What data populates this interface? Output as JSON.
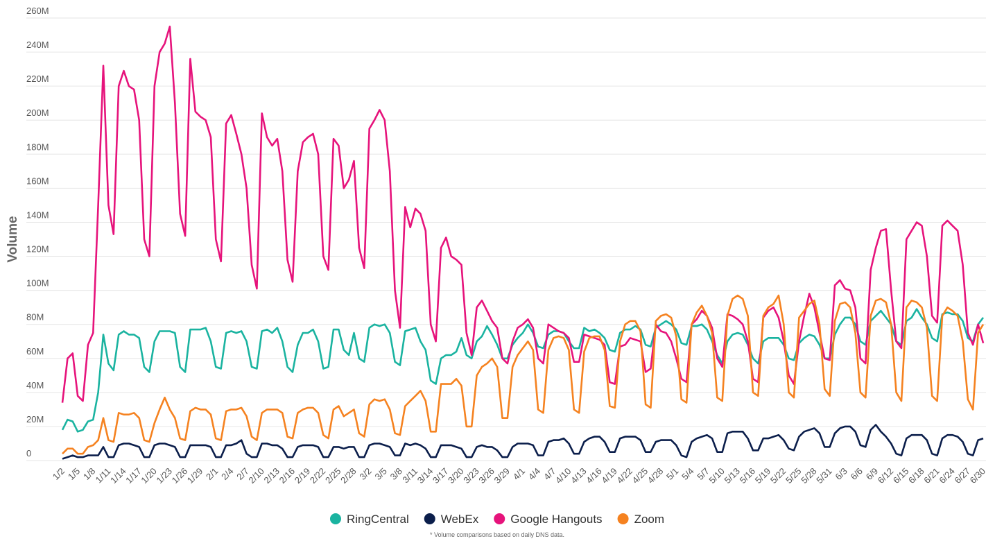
{
  "chart_data": {
    "type": "line",
    "y_label": "Volume",
    "footnote": "* Volume comparisons based on daily DNS data.",
    "ylim": [
      0,
      260
    ],
    "yticks": [
      0,
      {
        "value": 20,
        "label": "20M"
      },
      {
        "value": 40,
        "label": "40M"
      },
      {
        "value": 60,
        "label": "60M"
      },
      {
        "value": 80,
        "label": "80M"
      },
      {
        "value": 100,
        "label": "100M"
      },
      {
        "value": 120,
        "label": "120M"
      },
      {
        "value": 140,
        "label": "140M"
      },
      {
        "value": 160,
        "label": "160M"
      },
      {
        "value": 180,
        "label": "180M"
      },
      {
        "value": 200,
        "label": "200M"
      },
      {
        "value": 220,
        "label": "220M"
      },
      {
        "value": 240,
        "label": "240M"
      },
      {
        "value": 260,
        "label": "260M"
      }
    ],
    "grid": true,
    "legend": "bottom",
    "categories": [
      "1/2",
      null,
      null,
      "1/5",
      null,
      null,
      "1/8",
      null,
      null,
      "1/11",
      null,
      null,
      "1/14",
      null,
      null,
      "1/17",
      null,
      null,
      "1/20",
      null,
      null,
      "1/23",
      null,
      null,
      "1/26",
      null,
      null,
      "1/29",
      null,
      null,
      "2/1",
      null,
      null,
      "2/4",
      null,
      null,
      "2/7",
      null,
      null,
      "2/10",
      null,
      null,
      "2/13",
      null,
      null,
      "2/16",
      null,
      null,
      "2/19",
      null,
      null,
      "2/22",
      null,
      null,
      "2/25",
      null,
      null,
      "2/28",
      null,
      null,
      "3/2",
      null,
      null,
      "3/5",
      null,
      null,
      "3/8",
      null,
      null,
      "3/11",
      null,
      null,
      "3/14",
      null,
      null,
      "3/17",
      null,
      null,
      "3/20",
      null,
      null,
      "3/23",
      null,
      null,
      "3/26",
      null,
      null,
      "3/29",
      null,
      null,
      "4/1",
      null,
      null,
      "4/4",
      null,
      null,
      "4/7",
      null,
      null,
      "4/10",
      null,
      null,
      "4/13",
      null,
      null,
      "4/16",
      null,
      null,
      "4/19",
      null,
      null,
      "4/22",
      null,
      null,
      "4/25",
      null,
      null,
      "4/28",
      null,
      null,
      "5/1",
      null,
      null,
      "5/4",
      null,
      null,
      "5/7",
      null,
      null,
      "5/10",
      null,
      null,
      "5/13",
      null,
      null,
      "5/16",
      null,
      null,
      "5/19",
      null,
      null,
      "5/22",
      null,
      null,
      "5/25",
      null,
      null,
      "5/28",
      null,
      null,
      "5/31",
      null,
      null,
      "6/3",
      null,
      null,
      "6/6",
      null,
      null,
      "6/9",
      null,
      null,
      "6/12",
      null,
      null,
      "6/15",
      null,
      null,
      "6/18",
      null,
      null,
      "6/21",
      null,
      null,
      "6/24",
      null,
      null,
      "6/27",
      null,
      null,
      "6/30"
    ],
    "series": [
      {
        "name": "RingCentral",
        "color": "#1ab3a0",
        "values": [
          18,
          24,
          23,
          17,
          18,
          23,
          24,
          40,
          74,
          57,
          53,
          74,
          76,
          74,
          74,
          72,
          55,
          52,
          70,
          76,
          76,
          76,
          75,
          55,
          52,
          77,
          77,
          77,
          78,
          70,
          55,
          54,
          75,
          76,
          75,
          76,
          70,
          55,
          54,
          76,
          77,
          75,
          78,
          70,
          55,
          52,
          68,
          75,
          75,
          77,
          70,
          54,
          55,
          77,
          77,
          65,
          62,
          75,
          60,
          58,
          78,
          80,
          79,
          80,
          75,
          58,
          56,
          76,
          77,
          78,
          70,
          65,
          47,
          45,
          60,
          62,
          62,
          64,
          72,
          62,
          60,
          70,
          73,
          79,
          74,
          68,
          60,
          60,
          68,
          72,
          75,
          80,
          75,
          67,
          66,
          74,
          76,
          76,
          75,
          70,
          66,
          66,
          78,
          76,
          77,
          75,
          72,
          65,
          64,
          75,
          77,
          77,
          79,
          77,
          68,
          67,
          78,
          80,
          82,
          80,
          77,
          69,
          68,
          79,
          79,
          80,
          77,
          70,
          62,
          57,
          70,
          74,
          75,
          74,
          68,
          60,
          57,
          70,
          72,
          72,
          72,
          68,
          60,
          59,
          69,
          72,
          74,
          73,
          68,
          60,
          60,
          74,
          80,
          84,
          84,
          80,
          70,
          68,
          82,
          85,
          88,
          84,
          80,
          70,
          68,
          82,
          84,
          89,
          84,
          80,
          72,
          70,
          86,
          87,
          86,
          86,
          82,
          72,
          70,
          80,
          84
        ]
      },
      {
        "name": "WebEx",
        "color": "#0b1e4b",
        "values": [
          1,
          2,
          3,
          2,
          2,
          3,
          3,
          3,
          8,
          2,
          2,
          9,
          10,
          10,
          9,
          8,
          2,
          2,
          9,
          10,
          10,
          9,
          8,
          2,
          2,
          9,
          9,
          9,
          9,
          8,
          2,
          2,
          9,
          9,
          10,
          12,
          4,
          2,
          2,
          10,
          10,
          9,
          9,
          7,
          2,
          2,
          8,
          9,
          9,
          9,
          8,
          2,
          2,
          8,
          8,
          7,
          8,
          8,
          2,
          2,
          9,
          10,
          10,
          9,
          8,
          3,
          3,
          10,
          9,
          10,
          9,
          7,
          2,
          2,
          9,
          9,
          9,
          8,
          7,
          2,
          2,
          8,
          9,
          8,
          8,
          6,
          2,
          2,
          8,
          10,
          10,
          10,
          9,
          3,
          3,
          11,
          12,
          12,
          13,
          10,
          4,
          4,
          11,
          13,
          14,
          14,
          11,
          5,
          5,
          13,
          14,
          14,
          14,
          12,
          5,
          5,
          11,
          12,
          12,
          12,
          9,
          3,
          2,
          11,
          13,
          14,
          15,
          13,
          5,
          5,
          16,
          17,
          17,
          17,
          13,
          6,
          6,
          13,
          13,
          14,
          15,
          12,
          7,
          6,
          14,
          17,
          18,
          19,
          16,
          8,
          8,
          16,
          19,
          20,
          20,
          17,
          9,
          8,
          18,
          21,
          17,
          14,
          10,
          4,
          3,
          13,
          15,
          15,
          15,
          12,
          4,
          3,
          13,
          15,
          15,
          14,
          11,
          4,
          3,
          12,
          13
        ]
      },
      {
        "name": "Google Hangouts",
        "color": "#e6137b",
        "values": [
          34,
          60,
          63,
          38,
          35,
          68,
          75,
          150,
          232,
          150,
          133,
          220,
          229,
          220,
          218,
          200,
          130,
          120,
          220,
          240,
          245,
          255,
          210,
          145,
          132,
          236,
          205,
          202,
          200,
          190,
          130,
          117,
          198,
          203,
          192,
          180,
          160,
          115,
          101,
          204,
          190,
          185,
          189,
          170,
          118,
          105,
          170,
          187,
          190,
          192,
          180,
          120,
          112,
          189,
          185,
          160,
          165,
          176,
          125,
          113,
          195,
          200,
          206,
          200,
          170,
          100,
          78,
          149,
          137,
          148,
          145,
          135,
          80,
          70,
          125,
          131,
          120,
          118,
          115,
          75,
          62,
          90,
          94,
          88,
          82,
          78,
          60,
          57,
          70,
          78,
          80,
          83,
          78,
          60,
          57,
          80,
          78,
          76,
          75,
          72,
          58,
          58,
          74,
          73,
          72,
          71,
          68,
          46,
          45,
          67,
          68,
          72,
          71,
          70,
          52,
          54,
          80,
          76,
          75,
          70,
          60,
          48,
          46,
          80,
          83,
          88,
          85,
          78,
          60,
          55,
          86,
          85,
          83,
          80,
          70,
          48,
          46,
          84,
          88,
          90,
          84,
          70,
          50,
          45,
          70,
          85,
          98,
          90,
          75,
          60,
          59,
          103,
          106,
          101,
          100,
          90,
          60,
          57,
          112,
          125,
          135,
          136,
          100,
          70,
          66,
          130,
          135,
          140,
          138,
          120,
          85,
          81,
          138,
          141,
          138,
          135,
          115,
          75,
          68,
          80,
          69
        ]
      },
      {
        "name": "Zoom",
        "color": "#f58220",
        "values": [
          4,
          7,
          7,
          4,
          4,
          8,
          9,
          12,
          25,
          12,
          11,
          28,
          27,
          27,
          28,
          25,
          12,
          11,
          22,
          30,
          37,
          30,
          25,
          13,
          12,
          29,
          31,
          30,
          30,
          27,
          13,
          12,
          29,
          30,
          30,
          31,
          26,
          14,
          12,
          28,
          30,
          30,
          30,
          28,
          14,
          13,
          28,
          30,
          31,
          31,
          28,
          15,
          13,
          30,
          32,
          26,
          28,
          30,
          16,
          14,
          33,
          36,
          35,
          36,
          30,
          16,
          15,
          32,
          35,
          38,
          41,
          35,
          17,
          17,
          45,
          45,
          45,
          48,
          44,
          20,
          20,
          50,
          55,
          57,
          60,
          55,
          25,
          25,
          55,
          62,
          66,
          70,
          65,
          30,
          28,
          65,
          72,
          73,
          72,
          65,
          30,
          28,
          64,
          72,
          73,
          73,
          65,
          32,
          31,
          70,
          80,
          82,
          82,
          76,
          33,
          31,
          82,
          85,
          86,
          84,
          73,
          36,
          34,
          80,
          87,
          91,
          85,
          75,
          37,
          35,
          85,
          95,
          97,
          95,
          85,
          40,
          38,
          85,
          90,
          92,
          97,
          80,
          40,
          37,
          84,
          88,
          92,
          94,
          80,
          42,
          38,
          82,
          92,
          93,
          90,
          75,
          40,
          37,
          85,
          94,
          95,
          93,
          80,
          40,
          35,
          90,
          94,
          93,
          90,
          78,
          38,
          35,
          85,
          90,
          88,
          85,
          70,
          36,
          30,
          75,
          80
        ]
      }
    ]
  }
}
